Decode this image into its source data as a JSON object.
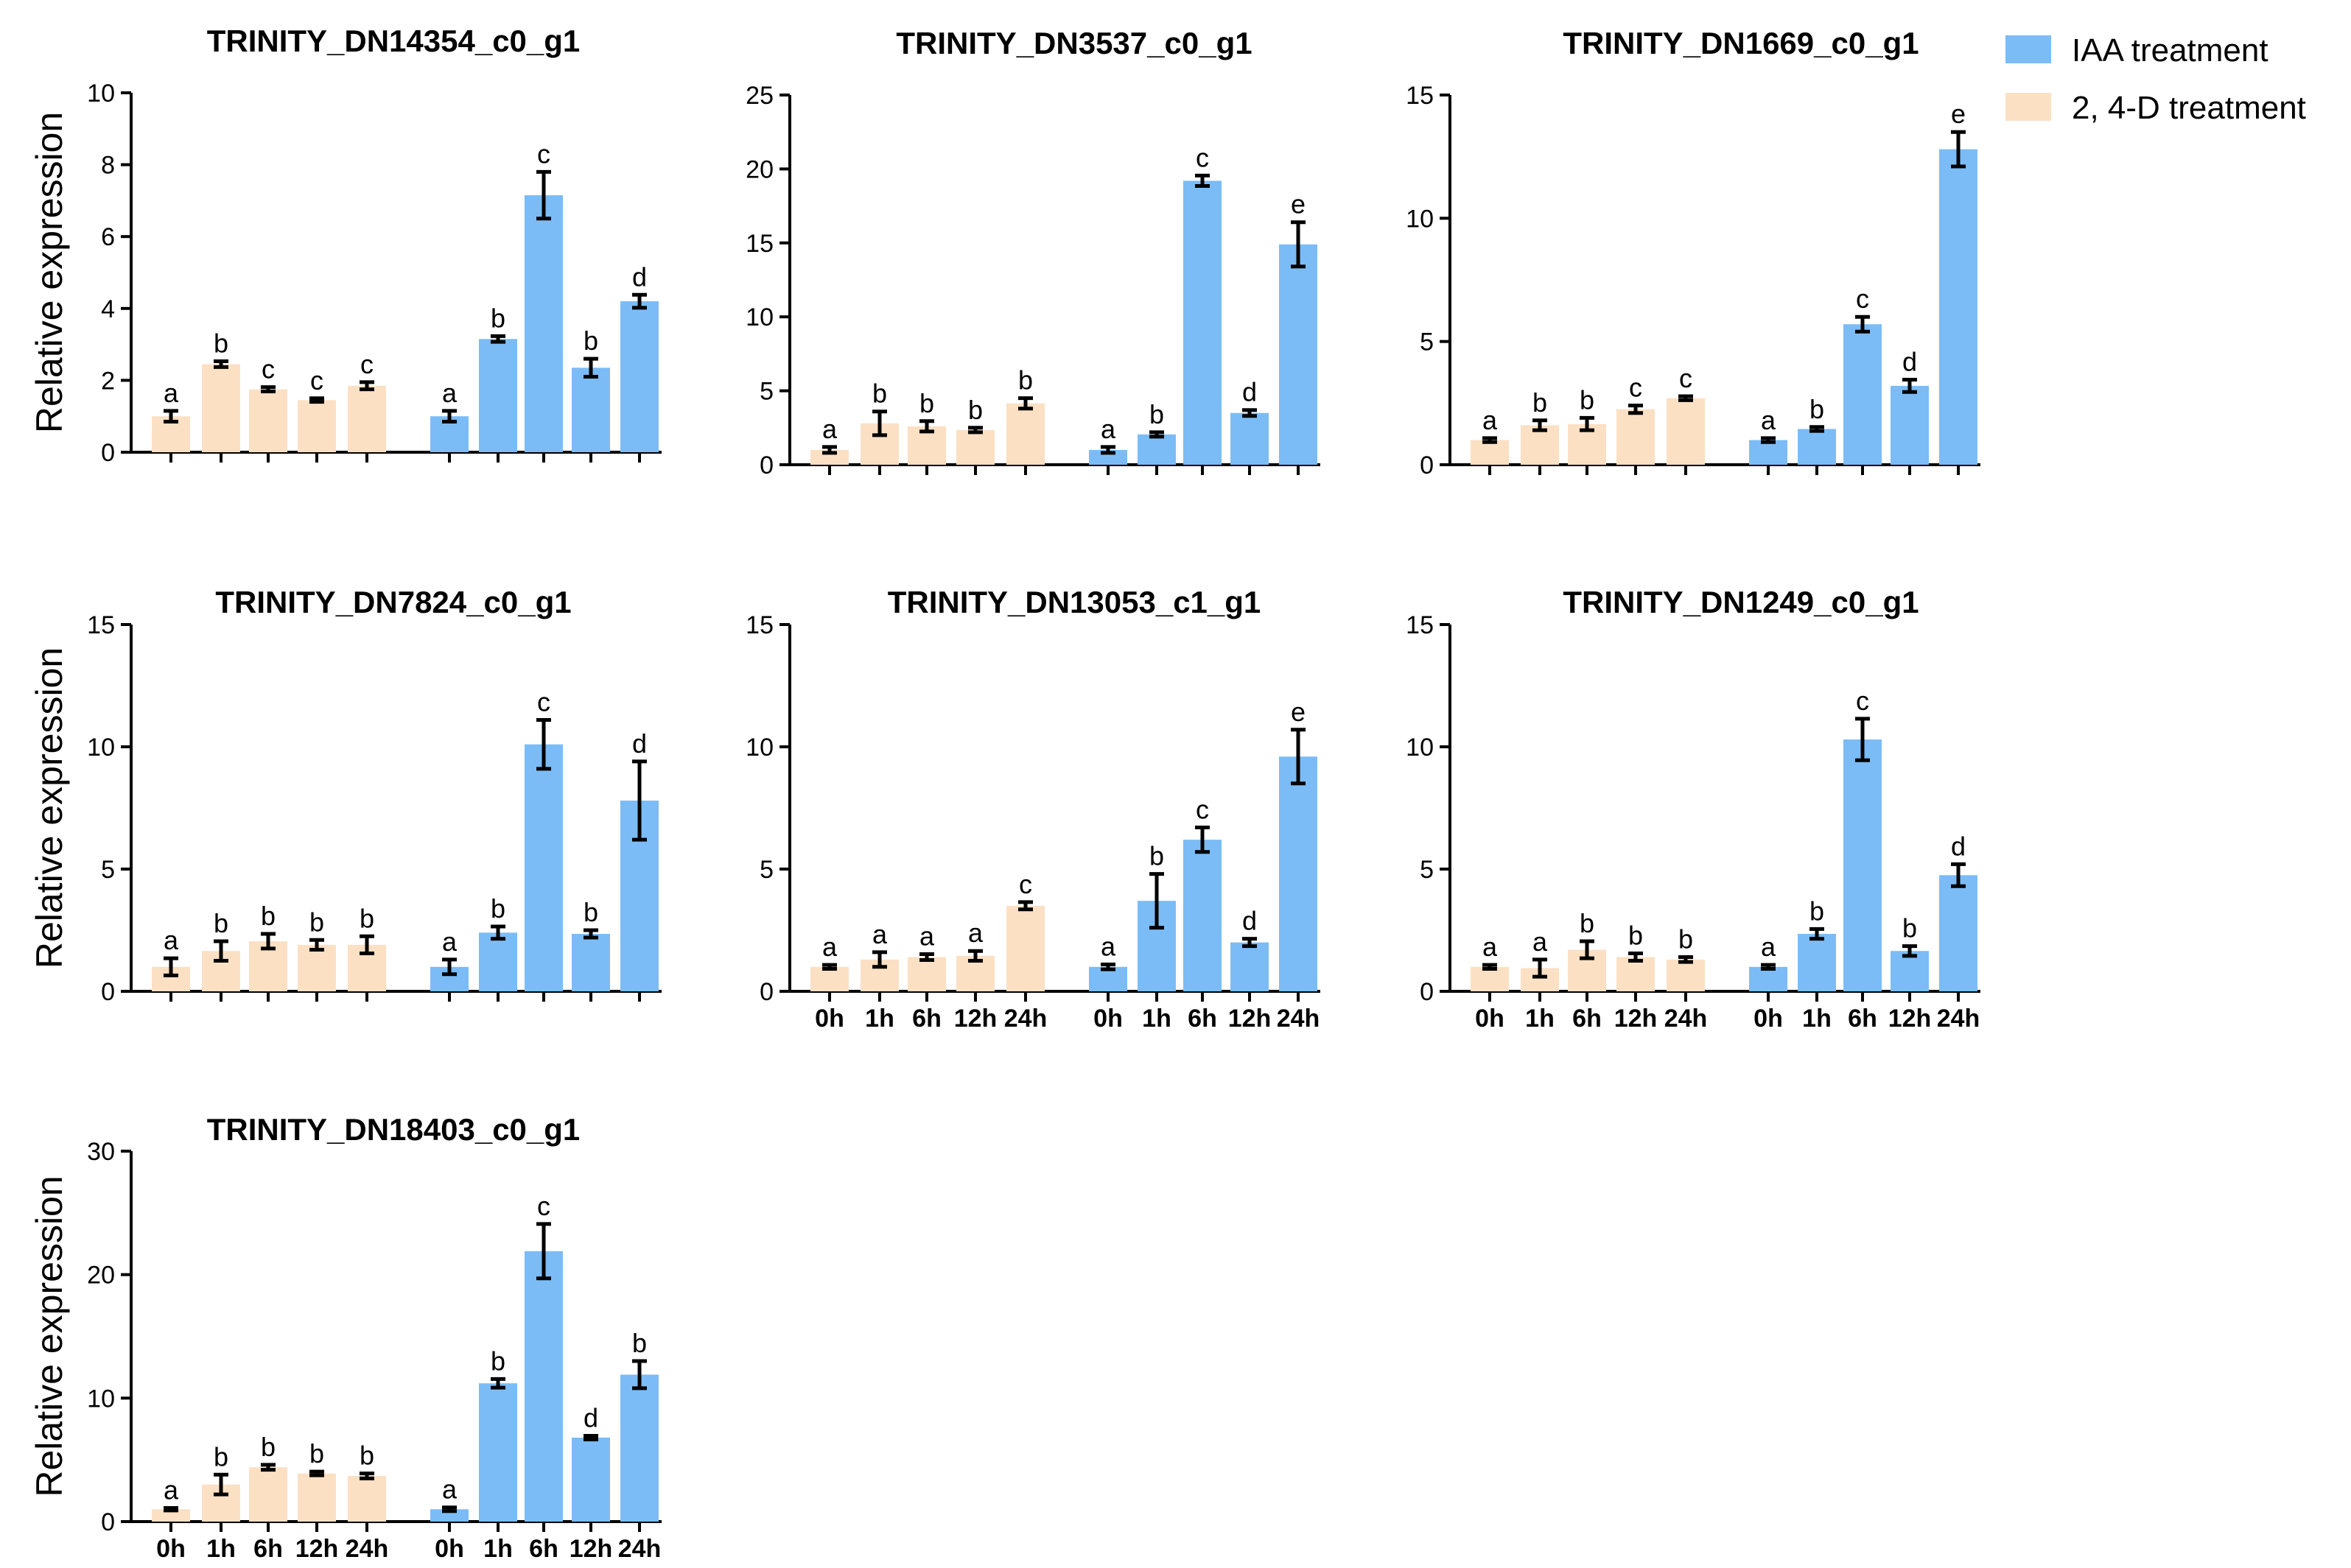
{
  "legend": [
    {
      "label": "IAA treatment",
      "color": "#7bbcf6"
    },
    {
      "label": "2, 4-D treatment",
      "color": "#fce0c4"
    }
  ],
  "categories": [
    "0h",
    "1h",
    "6h",
    "12h",
    "24h"
  ],
  "ylabel": "Relative expression",
  "chart_data": [
    {
      "type": "bar",
      "title": "TRINITY_DN14354_c0_g1",
      "ylabel": "Relative expression",
      "ylim": [
        0,
        10
      ],
      "yticks": [
        0,
        2,
        4,
        6,
        8,
        10
      ],
      "show_x_labels": false,
      "series": [
        {
          "name": "2, 4-D treatment",
          "values": [
            1.0,
            2.45,
            1.75,
            1.45,
            1.85
          ],
          "errors": [
            0.15,
            0.08,
            0.06,
            0.05,
            0.1
          ],
          "letters": [
            "a",
            "b",
            "c",
            "c",
            "c"
          ]
        },
        {
          "name": "IAA treatment",
          "values": [
            1.0,
            3.15,
            7.15,
            2.35,
            4.2
          ],
          "errors": [
            0.15,
            0.08,
            0.65,
            0.25,
            0.18
          ],
          "letters": [
            "a",
            "b",
            "c",
            "b",
            "d"
          ]
        }
      ]
    },
    {
      "type": "bar",
      "title": "TRINITY_DN3537_c0_g1",
      "ylabel": "",
      "ylim": [
        0,
        25
      ],
      "yticks": [
        0,
        5,
        10,
        15,
        20,
        25
      ],
      "show_x_labels": false,
      "series": [
        {
          "name": "2, 4-D treatment",
          "values": [
            1.0,
            2.8,
            2.6,
            2.35,
            4.15
          ],
          "errors": [
            0.2,
            0.8,
            0.35,
            0.15,
            0.35
          ],
          "letters": [
            "a",
            "b",
            "b",
            "b",
            "b"
          ]
        },
        {
          "name": "IAA treatment",
          "values": [
            1.0,
            2.05,
            19.2,
            3.5,
            14.9
          ],
          "errors": [
            0.2,
            0.15,
            0.35,
            0.2,
            1.5
          ],
          "letters": [
            "a",
            "b",
            "c",
            "d",
            "e"
          ]
        }
      ]
    },
    {
      "type": "bar",
      "title": "TRINITY_DN1669_c0_g1",
      "ylabel": "",
      "ylim": [
        0,
        15
      ],
      "yticks": [
        0,
        5,
        10,
        15
      ],
      "show_x_labels": false,
      "series": [
        {
          "name": "2, 4-D treatment",
          "values": [
            1.0,
            1.6,
            1.65,
            2.25,
            2.7
          ],
          "errors": [
            0.08,
            0.2,
            0.25,
            0.15,
            0.08
          ],
          "letters": [
            "a",
            "b",
            "b",
            "c",
            "c"
          ]
        },
        {
          "name": "IAA treatment",
          "values": [
            1.0,
            1.45,
            5.7,
            3.2,
            12.8
          ],
          "errors": [
            0.08,
            0.08,
            0.3,
            0.25,
            0.7
          ],
          "letters": [
            "a",
            "b",
            "c",
            "d",
            "e"
          ]
        }
      ]
    },
    {
      "type": "bar",
      "title": "TRINITY_DN7824_c0_g1",
      "ylabel": "Relative expression",
      "ylim": [
        0,
        15
      ],
      "yticks": [
        0,
        5,
        10,
        15
      ],
      "show_x_labels": false,
      "series": [
        {
          "name": "2, 4-D treatment",
          "values": [
            1.0,
            1.65,
            2.05,
            1.9,
            1.9
          ],
          "errors": [
            0.35,
            0.4,
            0.3,
            0.2,
            0.35
          ],
          "letters": [
            "a",
            "b",
            "b",
            "b",
            "b"
          ]
        },
        {
          "name": "IAA treatment",
          "values": [
            1.0,
            2.4,
            10.1,
            2.35,
            7.8
          ],
          "errors": [
            0.3,
            0.25,
            1.0,
            0.15,
            1.6
          ],
          "letters": [
            "a",
            "b",
            "c",
            "b",
            "d"
          ]
        }
      ]
    },
    {
      "type": "bar",
      "title": "TRINITY_DN13053_c1_g1",
      "ylabel": "",
      "ylim": [
        0,
        15
      ],
      "yticks": [
        0,
        5,
        10,
        15
      ],
      "show_x_labels": true,
      "series": [
        {
          "name": "2, 4-D treatment",
          "values": [
            1.0,
            1.3,
            1.4,
            1.45,
            3.5
          ],
          "errors": [
            0.08,
            0.3,
            0.12,
            0.2,
            0.15
          ],
          "letters": [
            "a",
            "a",
            "a",
            "a",
            "c"
          ]
        },
        {
          "name": "IAA treatment",
          "values": [
            1.0,
            3.7,
            6.2,
            2.0,
            9.6
          ],
          "errors": [
            0.1,
            1.1,
            0.5,
            0.15,
            1.1
          ],
          "letters": [
            "a",
            "b",
            "c",
            "d",
            "e"
          ]
        }
      ]
    },
    {
      "type": "bar",
      "title": "TRINITY_DN1249_c0_g1",
      "ylabel": "",
      "ylim": [
        0,
        15
      ],
      "yticks": [
        0,
        5,
        10,
        15
      ],
      "show_x_labels": true,
      "series": [
        {
          "name": "2, 4-D treatment",
          "values": [
            1.0,
            0.95,
            1.7,
            1.4,
            1.3
          ],
          "errors": [
            0.08,
            0.35,
            0.35,
            0.15,
            0.1
          ],
          "letters": [
            "a",
            "a",
            "b",
            "b",
            "b"
          ]
        },
        {
          "name": "IAA treatment",
          "values": [
            1.0,
            2.35,
            10.3,
            1.65,
            4.75
          ],
          "errors": [
            0.08,
            0.2,
            0.85,
            0.2,
            0.45
          ],
          "letters": [
            "a",
            "b",
            "c",
            "b",
            "d"
          ]
        }
      ]
    },
    {
      "type": "bar",
      "title": "TRINITY_DN18403_c0_g1",
      "ylabel": "Relative expression",
      "ylim": [
        0,
        30
      ],
      "yticks": [
        0,
        10,
        20,
        30
      ],
      "show_x_labels": true,
      "series": [
        {
          "name": "2, 4-D treatment",
          "values": [
            1.0,
            3.0,
            4.4,
            3.9,
            3.7
          ],
          "errors": [
            0.1,
            0.8,
            0.2,
            0.15,
            0.2
          ],
          "letters": [
            "a",
            "b",
            "b",
            "b",
            "b"
          ]
        },
        {
          "name": "IAA treatment",
          "values": [
            1.0,
            11.2,
            21.9,
            6.8,
            11.9
          ],
          "errors": [
            0.15,
            0.35,
            2.2,
            0.15,
            1.1
          ],
          "letters": [
            "a",
            "b",
            "c",
            "d",
            "b"
          ]
        }
      ]
    }
  ]
}
